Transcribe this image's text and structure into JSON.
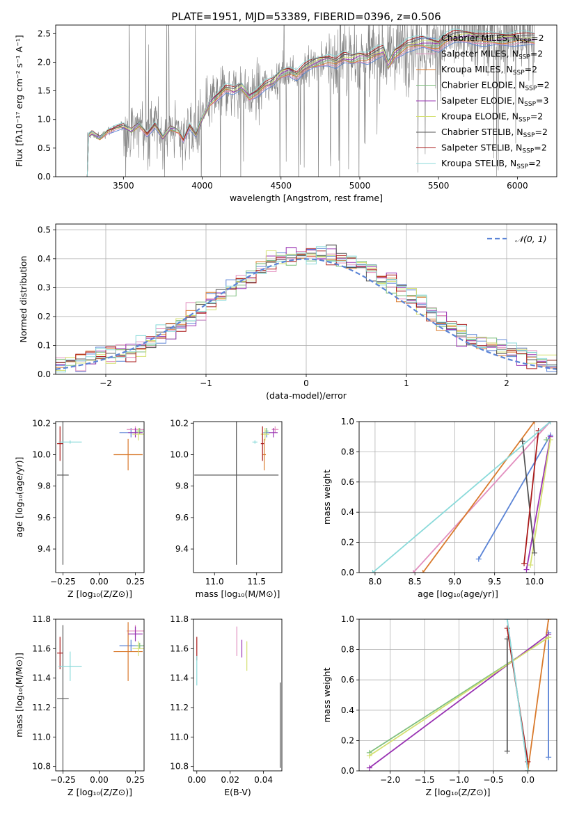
{
  "figure_title": "PLATE=1951, MJD=53389, FIBERID=0396, z=0.506",
  "colors": {
    "data": "#808080",
    "Chabrier MILES": "#5b84d6",
    "Salpeter MILES": "#e28fbf",
    "Kroupa MILES": "#d97a2c",
    "Chabrier ELODIE": "#7fbf7f",
    "Salpeter ELODIE": "#9933b3",
    "Kroupa ELODIE": "#d4e070",
    "Chabrier STELIB": "#555555",
    "Salpeter STELIB": "#aa1a1a",
    "Kroupa STELIB": "#8adada"
  },
  "legend_entries": [
    {
      "name": "Chabrier MILES",
      "label": "Chabrier MILES, N",
      "sub": "SSP",
      "tail": "=2"
    },
    {
      "name": "Salpeter MILES",
      "label": "Salpeter MILES, N",
      "sub": "SSP",
      "tail": "=2"
    },
    {
      "name": "Kroupa MILES",
      "label": "Kroupa MILES, N",
      "sub": "SSP",
      "tail": "=2"
    },
    {
      "name": "Chabrier ELODIE",
      "label": "Chabrier ELODIE, N",
      "sub": "SSP",
      "tail": "=2"
    },
    {
      "name": "Salpeter ELODIE",
      "label": "Salpeter ELODIE, N",
      "sub": "SSP",
      "tail": "=3"
    },
    {
      "name": "Kroupa ELODIE",
      "label": "Kroupa ELODIE, N",
      "sub": "SSP",
      "tail": "=2"
    },
    {
      "name": "Chabrier STELIB",
      "label": "Chabrier STELIB, N",
      "sub": "SSP",
      "tail": "=2"
    },
    {
      "name": "Salpeter STELIB",
      "label": "Salpeter STELIB, N",
      "sub": "SSP",
      "tail": "=2"
    },
    {
      "name": "Kroupa STELIB",
      "label": "Kroupa STELIB, N",
      "sub": "SSP",
      "tail": "=2"
    }
  ],
  "chart_data": [
    {
      "id": "spectrum",
      "type": "line",
      "title": "PLATE=1951, MJD=53389, FIBERID=0396, z=0.506",
      "xlabel": "wavelength [Angstrom, rest frame]",
      "ylabel": "Flux [fλ10⁻¹⁷ erg cm⁻² s⁻¹ A⁻¹]",
      "xlim": [
        3070,
        6250
      ],
      "ylim": [
        0,
        2.65
      ],
      "xticks": [
        3500,
        4000,
        4500,
        5000,
        5500,
        6000
      ],
      "yticks": [
        0.0,
        0.5,
        1.0,
        1.5,
        2.0,
        2.5
      ],
      "grid": false,
      "legend": "upper right",
      "model_start": 3270,
      "model_end": 6110,
      "continuum": [
        [
          3270,
          0.0
        ],
        [
          3272,
          0.7
        ],
        [
          3300,
          0.76
        ],
        [
          3350,
          0.68
        ],
        [
          3400,
          0.8
        ],
        [
          3450,
          0.85
        ],
        [
          3500,
          0.88
        ],
        [
          3550,
          0.8
        ],
        [
          3600,
          0.92
        ],
        [
          3650,
          0.75
        ],
        [
          3700,
          0.9
        ],
        [
          3750,
          0.68
        ],
        [
          3800,
          0.85
        ],
        [
          3850,
          0.8
        ],
        [
          3880,
          0.65
        ],
        [
          3920,
          0.88
        ],
        [
          3960,
          0.72
        ],
        [
          3990,
          0.95
        ],
        [
          4050,
          1.3
        ],
        [
          4100,
          1.42
        ],
        [
          4150,
          1.55
        ],
        [
          4200,
          1.5
        ],
        [
          4250,
          1.57
        ],
        [
          4300,
          1.4
        ],
        [
          4350,
          1.48
        ],
        [
          4400,
          1.6
        ],
        [
          4450,
          1.65
        ],
        [
          4500,
          1.8
        ],
        [
          4550,
          1.85
        ],
        [
          4600,
          1.78
        ],
        [
          4650,
          1.9
        ],
        [
          4700,
          1.97
        ],
        [
          4750,
          2.02
        ],
        [
          4800,
          2.05
        ],
        [
          4850,
          2.0
        ],
        [
          4900,
          2.08
        ],
        [
          4950,
          2.05
        ],
        [
          5000,
          2.1
        ],
        [
          5050,
          2.08
        ],
        [
          5100,
          2.15
        ],
        [
          5150,
          2.2
        ],
        [
          5180,
          1.95
        ],
        [
          5220,
          2.15
        ],
        [
          5300,
          2.3
        ],
        [
          5400,
          2.35
        ],
        [
          5500,
          2.3
        ],
        [
          5550,
          2.4
        ],
        [
          5600,
          2.45
        ],
        [
          5700,
          2.45
        ],
        [
          5800,
          2.4
        ],
        [
          5900,
          2.4
        ],
        [
          6000,
          2.42
        ],
        [
          6110,
          2.4
        ]
      ],
      "data_noise": 0.45
    },
    {
      "id": "residual-histogram",
      "type": "bar",
      "xlabel": "(data-model)/error",
      "ylabel": "Normed distribution",
      "xlim": [
        -2.5,
        2.5
      ],
      "ylim": [
        0,
        0.52
      ],
      "xticks": [
        -2,
        -1,
        0,
        1,
        2
      ],
      "yticks": [
        0.0,
        0.1,
        0.2,
        0.3,
        0.4,
        0.5
      ],
      "grid": true,
      "legend": "upper right",
      "reference_label": "𝒩(0, 1)",
      "reference_color": "#5b84d6",
      "bin_width": 0.1,
      "series_peak": 0.42
    },
    {
      "id": "age-vs-z",
      "type": "scatter",
      "xlabel": "Z [log₁₀(Z/Z⊙)]",
      "ylabel": "age  [log₁₀(age/yr)]",
      "xlim": [
        -0.3,
        0.31
      ],
      "ylim": [
        9.25,
        10.21
      ],
      "xticks": [
        -0.25,
        0.0,
        0.25
      ],
      "yticks": [
        9.4,
        9.6,
        9.8,
        10.0,
        10.2
      ],
      "grid": false,
      "points": [
        {
          "series": "Chabrier MILES",
          "x": 0.22,
          "y": 10.14,
          "xerr": 0.08,
          "yerr": 0.03
        },
        {
          "series": "Salpeter MILES",
          "x": 0.25,
          "y": 10.16,
          "xerr": 0.06,
          "yerr": 0.02
        },
        {
          "series": "Kroupa MILES",
          "x": 0.2,
          "y": 10.0,
          "xerr": 0.1,
          "yerr": 0.1
        },
        {
          "series": "Chabrier ELODIE",
          "x": 0.28,
          "y": 10.15,
          "xerr": 0.03,
          "yerr": 0.02
        },
        {
          "series": "Salpeter ELODIE",
          "x": 0.25,
          "y": 10.14,
          "xerr": 0.05,
          "yerr": 0.03
        },
        {
          "series": "Kroupa ELODIE",
          "x": 0.27,
          "y": 10.13,
          "xerr": 0.04,
          "yerr": 0.04
        },
        {
          "series": "Chabrier STELIB",
          "x": -0.25,
          "y": 9.87,
          "xerr": 0.04,
          "yerr": 0.57
        },
        {
          "series": "Salpeter STELIB",
          "x": -0.27,
          "y": 10.07,
          "xerr": 0.02,
          "yerr": 0.11
        },
        {
          "series": "Kroupa STELIB",
          "x": -0.2,
          "y": 10.08,
          "xerr": 0.08,
          "yerr": 0.01
        }
      ]
    },
    {
      "id": "age-vs-mass",
      "type": "scatter",
      "xlabel": "mass [log₁₀(M/M⊙)]",
      "ylabel": "",
      "xlim": [
        10.75,
        11.8
      ],
      "ylim": [
        9.25,
        10.21
      ],
      "xticks": [
        11.0,
        11.5
      ],
      "yticks": [
        9.4,
        9.6,
        9.8,
        10.0,
        10.2
      ],
      "grid": false,
      "points": [
        {
          "series": "Chabrier MILES",
          "x": 11.62,
          "y": 10.14,
          "xerr": 0.04,
          "yerr": 0.03
        },
        {
          "series": "Salpeter MILES",
          "x": 11.72,
          "y": 10.16,
          "xerr": 0.04,
          "yerr": 0.02
        },
        {
          "series": "Kroupa MILES",
          "x": 11.59,
          "y": 10.0,
          "xerr": 0.02,
          "yerr": 0.1
        },
        {
          "series": "Chabrier ELODIE",
          "x": 11.62,
          "y": 10.15,
          "xerr": 0.02,
          "yerr": 0.02
        },
        {
          "series": "Salpeter ELODIE",
          "x": 11.7,
          "y": 10.14,
          "xerr": 0.05,
          "yerr": 0.03
        },
        {
          "series": "Kroupa ELODIE",
          "x": 11.6,
          "y": 10.13,
          "xerr": 0.05,
          "yerr": 0.04
        },
        {
          "series": "Chabrier STELIB",
          "x": 11.26,
          "y": 9.87,
          "xerr": 0.5,
          "yerr": 0.57
        },
        {
          "series": "Salpeter STELIB",
          "x": 11.57,
          "y": 10.07,
          "xerr": 0.02,
          "yerr": 0.11
        },
        {
          "series": "Kroupa STELIB",
          "x": 11.48,
          "y": 10.08,
          "xerr": 0.03,
          "yerr": 0.01
        }
      ]
    },
    {
      "id": "mass-weight-vs-age",
      "type": "line",
      "xlabel": "age  [log₁₀(age/yr)]",
      "ylabel": "mass weight",
      "xlim": [
        7.8,
        10.28
      ],
      "ylim": [
        0,
        1.0
      ],
      "xticks": [
        8.0,
        8.5,
        9.0,
        9.5,
        10.0
      ],
      "yticks": [
        0.0,
        0.2,
        0.4,
        0.6,
        0.8,
        1.0
      ],
      "grid": true,
      "series": [
        {
          "name": "Chabrier MILES",
          "points": [
            [
              9.3,
              0.09
            ],
            [
              10.2,
              0.91
            ]
          ]
        },
        {
          "name": "Salpeter MILES",
          "points": [
            [
              8.48,
              0.0
            ],
            [
              10.2,
              1.0
            ]
          ]
        },
        {
          "name": "Kroupa MILES",
          "points": [
            [
              8.6,
              0.0
            ],
            [
              10.0,
              1.0
            ]
          ]
        },
        {
          "name": "Chabrier ELODIE",
          "points": [
            [
              10.15,
              0.88
            ],
            [
              10.15,
              0.88
            ]
          ]
        },
        {
          "name": "Salpeter ELODIE",
          "points": [
            [
              9.9,
              0.02
            ],
            [
              10.2,
              0.9
            ]
          ]
        },
        {
          "name": "Kroupa ELODIE",
          "points": [
            [
              9.95,
              0.05
            ],
            [
              10.2,
              0.88
            ]
          ]
        },
        {
          "name": "Chabrier STELIB",
          "points": [
            [
              9.85,
              0.87
            ],
            [
              10.0,
              0.13
            ]
          ]
        },
        {
          "name": "Salpeter STELIB",
          "points": [
            [
              9.87,
              0.06
            ],
            [
              10.05,
              0.94
            ]
          ]
        },
        {
          "name": "Kroupa STELIB",
          "points": [
            [
              7.97,
              0.0
            ],
            [
              10.2,
              1.0
            ]
          ]
        }
      ]
    },
    {
      "id": "mass-vs-z",
      "type": "scatter",
      "xlabel": "Z [log₁₀(Z/Z⊙)]",
      "ylabel": "mass [log₁₀(M/M⊙)]",
      "xlim": [
        -0.3,
        0.31
      ],
      "ylim": [
        10.77,
        11.8
      ],
      "xticks": [
        -0.25,
        0.0,
        0.25
      ],
      "yticks": [
        10.8,
        11.0,
        11.2,
        11.4,
        11.6,
        11.8
      ],
      "grid": false,
      "points": [
        {
          "series": "Chabrier MILES",
          "x": 0.22,
          "y": 11.62,
          "xerr": 0.08,
          "yerr": 0.04
        },
        {
          "series": "Salpeter MILES",
          "x": 0.25,
          "y": 11.72,
          "xerr": 0.06,
          "yerr": 0.04
        },
        {
          "series": "Kroupa MILES",
          "x": 0.2,
          "y": 11.58,
          "xerr": 0.1,
          "yerr": 0.2
        },
        {
          "series": "Chabrier ELODIE",
          "x": 0.28,
          "y": 11.62,
          "xerr": 0.03,
          "yerr": 0.02
        },
        {
          "series": "Salpeter ELODIE",
          "x": 0.25,
          "y": 11.7,
          "xerr": 0.05,
          "yerr": 0.05
        },
        {
          "series": "Kroupa ELODIE",
          "x": 0.27,
          "y": 11.6,
          "xerr": 0.04,
          "yerr": 0.05
        },
        {
          "series": "Chabrier STELIB",
          "x": -0.25,
          "y": 11.26,
          "xerr": 0.04,
          "yerr": 0.5
        },
        {
          "series": "Salpeter STELIB",
          "x": -0.27,
          "y": 11.57,
          "xerr": 0.02,
          "yerr": 0.11
        },
        {
          "series": "Kroupa STELIB",
          "x": -0.2,
          "y": 11.48,
          "xerr": 0.08,
          "yerr": 0.1
        }
      ]
    },
    {
      "id": "mass-vs-ebv",
      "type": "scatter",
      "xlabel": "E(B-V)",
      "ylabel": "",
      "xlim": [
        -0.002,
        0.051
      ],
      "ylim": [
        10.77,
        11.8
      ],
      "xticks": [
        0.0,
        0.02,
        0.04
      ],
      "yticks": [
        10.8,
        11.0,
        11.2,
        11.4,
        11.6,
        11.8
      ],
      "grid": false,
      "points": [
        {
          "series": "Salpeter MILES",
          "x": 0.024,
          "y": 11.65,
          "yerr": 0.1
        },
        {
          "series": "Salpeter ELODIE",
          "x": 0.027,
          "y": 11.6,
          "yerr": 0.06
        },
        {
          "series": "Kroupa ELODIE",
          "x": 0.03,
          "y": 11.55,
          "yerr": 0.1
        },
        {
          "series": "Chabrier STELIB",
          "x": 0.05,
          "y": 11.08,
          "yerr": 0.29
        },
        {
          "series": "Salpeter STELIB",
          "x": 0.0,
          "y": 11.6,
          "yerr": 0.08
        },
        {
          "series": "Kroupa STELIB",
          "x": 0.0,
          "y": 11.45,
          "yerr": 0.1
        }
      ]
    },
    {
      "id": "mass-weight-vs-z",
      "type": "line",
      "xlabel": "Z [log₁₀(Z/Z⊙)]",
      "ylabel": "mass weight",
      "xlim": [
        -2.45,
        0.42
      ],
      "ylim": [
        0,
        1.0
      ],
      "xticks": [
        -2.0,
        -1.5,
        -1.0,
        -0.5,
        0.0
      ],
      "yticks": [
        0.0,
        0.2,
        0.4,
        0.6,
        0.8,
        1.0
      ],
      "grid": true,
      "series": [
        {
          "name": "Chabrier MILES",
          "points": [
            [
              0.3,
              0.09
            ],
            [
              0.3,
              0.91
            ]
          ]
        },
        {
          "name": "Salpeter MILES",
          "points": [
            [
              -0.3,
              1.0
            ],
            [
              0.0,
              0.0
            ]
          ]
        },
        {
          "name": "Kroupa MILES",
          "points": [
            [
              0.0,
              0.0
            ],
            [
              0.3,
              1.0
            ]
          ]
        },
        {
          "name": "Chabrier ELODIE",
          "points": [
            [
              -2.3,
              0.12
            ],
            [
              0.3,
              0.88
            ]
          ]
        },
        {
          "name": "Salpeter ELODIE",
          "points": [
            [
              -2.3,
              0.02
            ],
            [
              0.3,
              0.9
            ]
          ]
        },
        {
          "name": "Kroupa ELODIE",
          "points": [
            [
              -2.3,
              0.1
            ],
            [
              0.3,
              0.88
            ]
          ]
        },
        {
          "name": "Chabrier STELIB",
          "points": [
            [
              -0.3,
              0.13
            ],
            [
              -0.3,
              0.87
            ]
          ]
        },
        {
          "name": "Salpeter STELIB",
          "points": [
            [
              -0.3,
              0.94
            ],
            [
              0.0,
              0.06
            ]
          ]
        },
        {
          "name": "Kroupa STELIB",
          "points": [
            [
              -0.3,
              1.0
            ],
            [
              0.0,
              0.0
            ]
          ]
        }
      ]
    }
  ]
}
